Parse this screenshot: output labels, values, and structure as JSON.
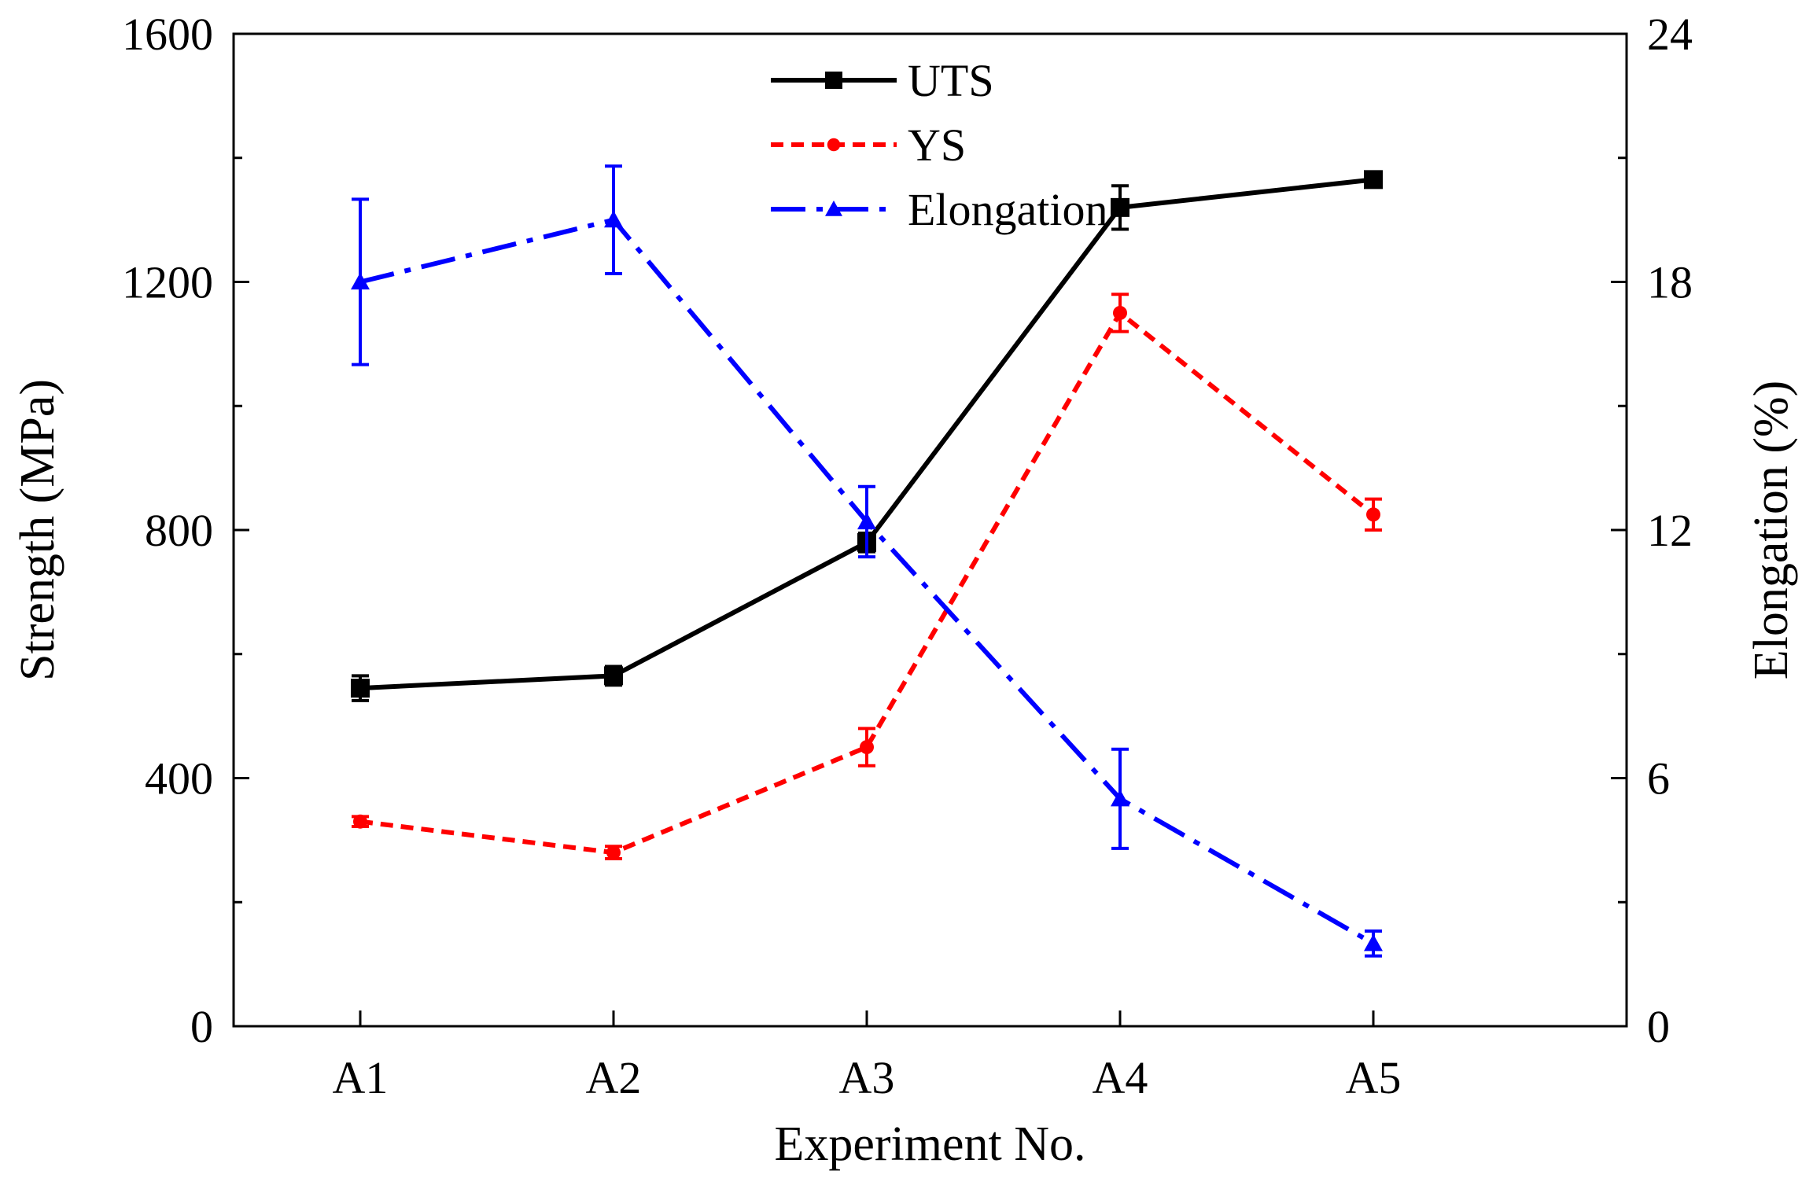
{
  "chart_data": {
    "type": "line",
    "categories": [
      "A1",
      "A2",
      "A3",
      "A4",
      "A5"
    ],
    "xlabel": "Experiment No.",
    "ylabel": "Strength (MPa)",
    "ylabel_right": "Elongation (%)",
    "ylim": [
      0,
      1600
    ],
    "yticks": [
      "0",
      "400",
      "800",
      "1200",
      "1600"
    ],
    "ylim_right": [
      0,
      24
    ],
    "yticks_right": [
      "0",
      "6",
      "12",
      "18",
      "24"
    ],
    "grid": false,
    "legend_position": "top-center",
    "series": [
      {
        "name": "UTS",
        "axis": "left",
        "color": "#000000",
        "line_style": "solid",
        "marker": "square",
        "values": [
          545,
          565,
          780,
          1320,
          1365
        ],
        "errors": [
          20,
          15,
          15,
          35,
          10
        ]
      },
      {
        "name": "YS",
        "axis": "left",
        "color": "#ff0000",
        "line_style": "dotted",
        "marker": "circle",
        "values": [
          330,
          280,
          450,
          1150,
          825
        ],
        "errors": [
          8,
          10,
          30,
          30,
          25
        ]
      },
      {
        "name": "Elongation",
        "axis": "right",
        "color": "#0000ff",
        "line_style": "dash-dot",
        "marker": "triangle",
        "values": [
          18.0,
          19.5,
          12.2,
          5.5,
          2.0
        ],
        "errors": [
          2.0,
          1.3,
          0.85,
          1.2,
          0.3
        ]
      }
    ]
  }
}
